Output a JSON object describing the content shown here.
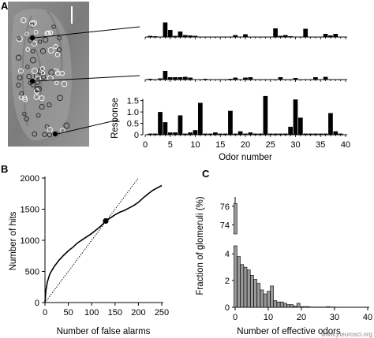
{
  "panels": {
    "a": "A",
    "b": "B",
    "c": "C"
  },
  "watermark": "www.jneurosci.org",
  "colors": {
    "ink": "#000000",
    "bar_gray": "#9a9a9a",
    "image_bg": "#8a8a8a"
  },
  "chart_data": [
    {
      "id": "A-top",
      "type": "bar",
      "x": [
        1,
        2,
        3,
        4,
        5,
        6,
        7,
        8,
        9,
        10,
        11,
        12,
        13,
        14,
        15,
        16,
        17,
        18,
        19,
        20,
        21,
        22,
        23,
        24,
        25,
        26,
        27,
        28,
        29,
        30,
        31,
        32,
        33,
        34,
        35,
        36,
        37,
        38,
        39
      ],
      "values": [
        0.15,
        0.1,
        0.05,
        1.85,
        0.9,
        0.15,
        0.7,
        0.25,
        0.2,
        0.15,
        0.05,
        0.05,
        0.05,
        0.05,
        0.05,
        0.05,
        0.05,
        0.25,
        0.05,
        0.35,
        0.05,
        0.05,
        0.05,
        0.05,
        0.05,
        1.1,
        0.15,
        0.25,
        0.1,
        0.05,
        0.05,
        1.05,
        0.05,
        0.05,
        0.05,
        0.4,
        0.2,
        0.4,
        0.05
      ],
      "xlim": [
        0,
        40
      ],
      "ylim": [
        0,
        2
      ]
    },
    {
      "id": "A-middle",
      "type": "bar",
      "x": [
        1,
        2,
        3,
        4,
        5,
        6,
        7,
        8,
        9,
        10,
        11,
        12,
        13,
        14,
        15,
        16,
        17,
        18,
        19,
        20,
        21,
        22,
        23,
        24,
        25,
        26,
        27,
        28,
        29,
        30,
        31,
        32,
        33,
        34,
        35,
        36,
        37,
        38,
        39
      ],
      "values": [
        0.1,
        0.05,
        0.15,
        1.1,
        0.3,
        0.3,
        0.3,
        0.35,
        0.25,
        0.05,
        0.05,
        0.1,
        0.05,
        0.05,
        0.05,
        0.05,
        0.1,
        0.25,
        0.05,
        0.25,
        0.3,
        0.05,
        0.05,
        0.05,
        0.05,
        0.05,
        0.3,
        0.05,
        0.05,
        0.2,
        0.05,
        0.05,
        0.05,
        0.3,
        0.05,
        0.35,
        0.05,
        0.05,
        0.05
      ],
      "xlim": [
        0,
        40
      ],
      "ylim": [
        0,
        2
      ]
    },
    {
      "id": "A-bottom",
      "type": "bar",
      "x": [
        1,
        2,
        3,
        4,
        5,
        6,
        7,
        8,
        9,
        10,
        11,
        12,
        13,
        14,
        15,
        16,
        17,
        18,
        19,
        20,
        21,
        22,
        23,
        24,
        25,
        26,
        27,
        28,
        29,
        30,
        31,
        32,
        33,
        34,
        35,
        36,
        37,
        38,
        39
      ],
      "values": [
        0.05,
        0.05,
        1.0,
        0.55,
        0.1,
        0.1,
        0.85,
        0.05,
        0.1,
        0.2,
        1.4,
        0.05,
        0.05,
        0.1,
        0.05,
        0.05,
        1.05,
        0.05,
        0.15,
        0.05,
        0.1,
        0.05,
        0.05,
        1.7,
        0.05,
        0.05,
        0.05,
        0.05,
        0.35,
        1.55,
        0.75,
        0.05,
        0.05,
        0.05,
        0.05,
        0.05,
        0.95,
        0.15,
        0.05
      ],
      "xlim": [
        0,
        40
      ],
      "ylim": [
        0,
        1.8
      ],
      "yticks": [
        "0",
        "0.5",
        "1.0",
        "1.5"
      ],
      "xticks": [
        "0",
        "5",
        "10",
        "15",
        "20",
        "25",
        "30",
        "35",
        "40"
      ],
      "ylabel": "Response",
      "xlabel": "Odor number"
    },
    {
      "id": "B",
      "type": "line",
      "xlabel": "Number of false alarms",
      "ylabel": "Number of hits",
      "xlim": [
        0,
        250
      ],
      "ylim": [
        0,
        2000
      ],
      "xticks": [
        "0",
        "50",
        "100",
        "150",
        "200",
        "250"
      ],
      "yticks": [
        "0",
        "500",
        "1000",
        "1500",
        "2000"
      ],
      "series": [
        {
          "style": "solid",
          "x": [
            0,
            2,
            5,
            10,
            15,
            20,
            30,
            40,
            50,
            60,
            70,
            80,
            90,
            100,
            110,
            120,
            130,
            140,
            150,
            160,
            170,
            180,
            190,
            200,
            210,
            220,
            230,
            240,
            250
          ],
          "y": [
            0,
            200,
            330,
            450,
            520,
            580,
            680,
            760,
            830,
            890,
            960,
            1010,
            1060,
            1110,
            1170,
            1230,
            1310,
            1360,
            1410,
            1450,
            1480,
            1520,
            1560,
            1610,
            1680,
            1740,
            1800,
            1840,
            1880
          ]
        },
        {
          "style": "dotted",
          "x": [
            0,
            200
          ],
          "y": [
            0,
            2000
          ]
        }
      ],
      "marker": {
        "x": 130,
        "y": 1310
      }
    },
    {
      "id": "C",
      "type": "bar",
      "xlabel": "Number of effective odors",
      "ylabel": "Fraction of glomeruli (%)",
      "xlim": [
        0,
        40
      ],
      "xticks": [
        "0",
        "10",
        "20",
        "30",
        "40"
      ],
      "yticks_lower": [
        "0",
        "2",
        "4"
      ],
      "yticks_upper": [
        "74",
        "76"
      ],
      "axis_break": true,
      "upper_range": [
        73,
        77
      ],
      "lower_range": [
        0,
        4.6
      ],
      "x": [
        0,
        1,
        2,
        3,
        4,
        5,
        6,
        7,
        8,
        9,
        10,
        11,
        12,
        13,
        14,
        15,
        16,
        17,
        18,
        19,
        20,
        21,
        22,
        23,
        24,
        25,
        26,
        27,
        28,
        29,
        30
      ],
      "values": [
        76.3,
        3.8,
        3.2,
        3.0,
        2.8,
        2.4,
        2.1,
        1.8,
        1.3,
        1.0,
        1.2,
        1.6,
        0.5,
        0.4,
        0.4,
        0.3,
        0.2,
        0.2,
        0.1,
        0.3,
        0.05,
        0.05,
        0.05,
        0.02,
        0.02,
        0.02,
        0.02,
        0.02,
        0.05,
        0.02,
        0.02
      ]
    }
  ]
}
